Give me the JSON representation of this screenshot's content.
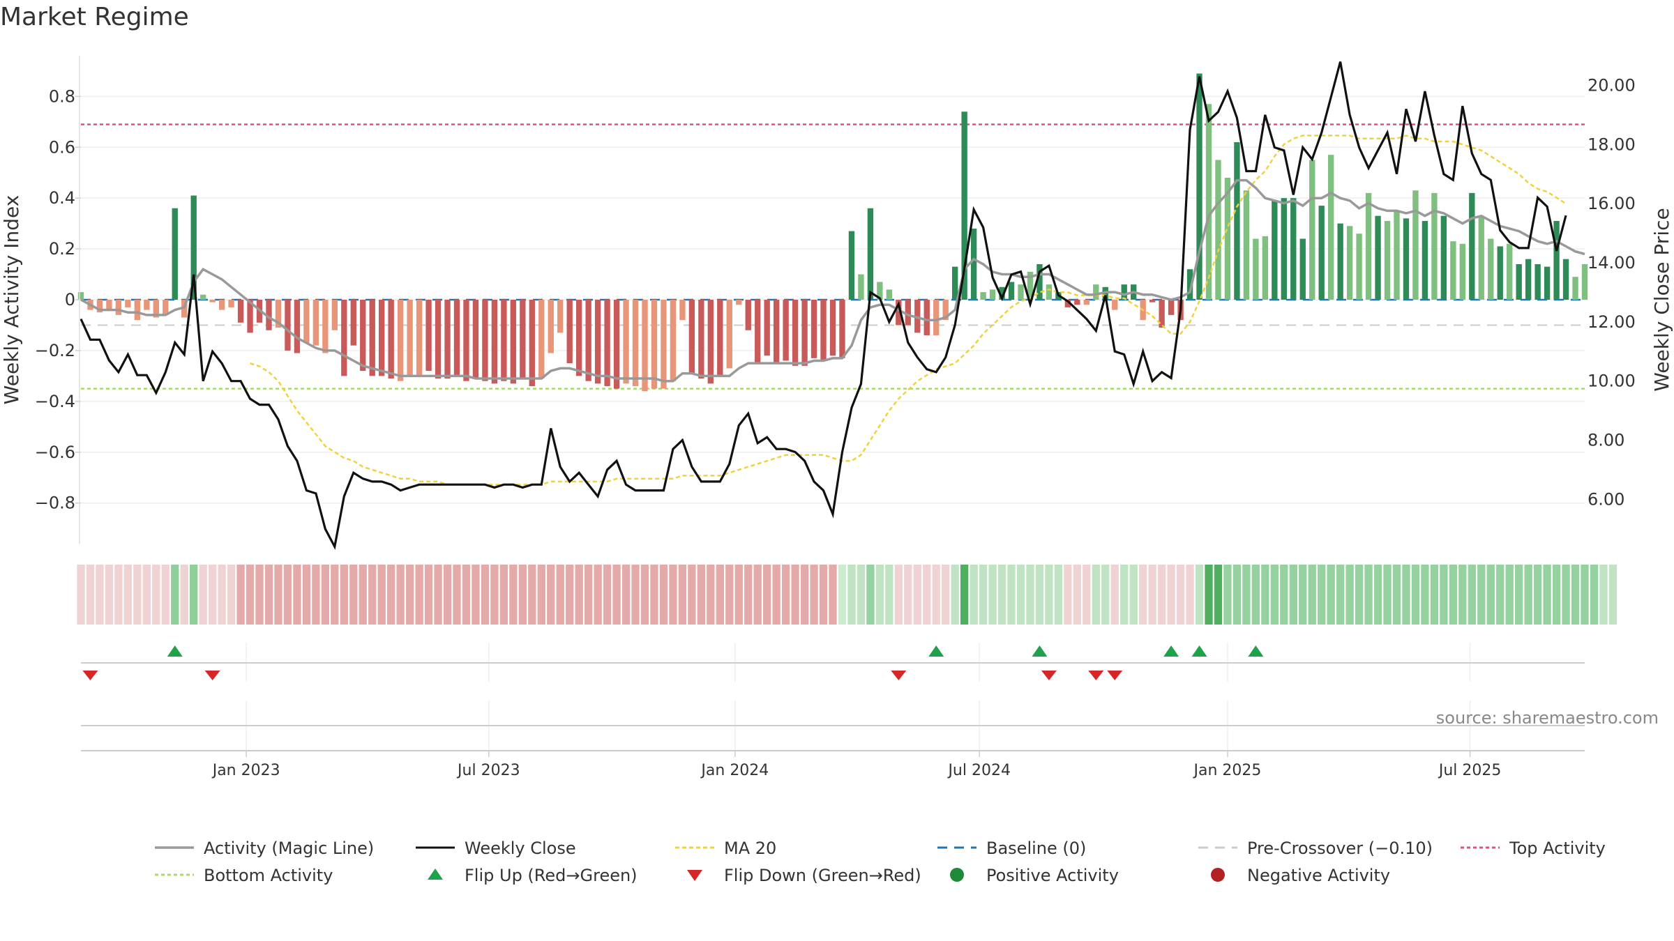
{
  "title": "Market Regime",
  "source": "source: sharemaestro.com",
  "colors": {
    "strong_green": "#2e8b57",
    "light_green": "#7fbf7f",
    "strong_red": "#c85a5a",
    "light_red": "#e8967a",
    "magic_line": "#999999",
    "close": "#111111",
    "ma20": "#f0d23c",
    "baseline": "#1f77b4",
    "pre_crossover": "#cccccc",
    "top": "#d9537a",
    "bottom": "#a8d96a",
    "flip_up": "#1fa34a",
    "flip_down": "#d62728",
    "positive": "#1f8a3a",
    "negative": "#b22222"
  },
  "legend": [
    {
      "key": "magic",
      "label": "Activity (Magic Line)"
    },
    {
      "key": "close",
      "label": "Weekly Close"
    },
    {
      "key": "ma20",
      "label": "MA 20"
    },
    {
      "key": "baseline",
      "label": "Baseline (0)"
    },
    {
      "key": "pre",
      "label": "Pre-Crossover (−0.10)"
    },
    {
      "key": "top",
      "label": "Top Activity"
    },
    {
      "key": "bottom",
      "label": "Bottom Activity"
    },
    {
      "key": "flipup",
      "label": "Flip Up (Red→Green)"
    },
    {
      "key": "flipdown",
      "label": "Flip Down (Green→Red)"
    },
    {
      "key": "positive",
      "label": "Positive Activity"
    },
    {
      "key": "negative",
      "label": "Negative Activity"
    }
  ],
  "chart_data": {
    "type": "bar",
    "ylabel": "Weekly Activity Index",
    "y2label": "Weekly Close Price",
    "ylim": [
      -0.96,
      0.96
    ],
    "y2lim": [
      4.5,
      21.0
    ],
    "yticks": [
      -0.8,
      -0.6,
      -0.4,
      -0.2,
      0,
      0.2,
      0.4,
      0.6,
      0.8
    ],
    "ytick_labels": [
      "−0.8",
      "−0.6",
      "−0.4",
      "−0.2",
      "0",
      "0.2",
      "0.4",
      "0.6",
      "0.8"
    ],
    "y2ticks": [
      6,
      8,
      10,
      12,
      14,
      16,
      18,
      20
    ],
    "y2tick_labels": [
      "6.00",
      "8.00",
      "10.00",
      "12.00",
      "14.00",
      "16.00",
      "18.00",
      "20.00"
    ],
    "x_start_week": 0,
    "xticks": [
      {
        "label": "Jan 2023",
        "week": 17.6
      },
      {
        "label": "Jul 2023",
        "week": 43.4
      },
      {
        "label": "Jan 2024",
        "week": 69.6
      },
      {
        "label": "Jul 2024",
        "week": 95.6
      },
      {
        "label": "Jan 2025",
        "week": 122.0
      },
      {
        "label": "Jul 2025",
        "week": 147.8
      }
    ],
    "reference_lines": {
      "top": 0.69,
      "bottom": -0.35,
      "baseline": 0,
      "pre_crossover": -0.1
    },
    "activity": [
      0.03,
      -0.04,
      -0.05,
      -0.04,
      -0.06,
      -0.03,
      -0.08,
      -0.04,
      -0.07,
      -0.06,
      0.36,
      -0.07,
      0.41,
      0.02,
      -0.01,
      -0.04,
      -0.03,
      -0.09,
      -0.13,
      -0.09,
      -0.12,
      -0.11,
      -0.2,
      -0.21,
      -0.17,
      -0.18,
      -0.21,
      -0.12,
      -0.3,
      -0.18,
      -0.28,
      -0.3,
      -0.3,
      -0.31,
      -0.32,
      -0.3,
      -0.3,
      -0.28,
      -0.31,
      -0.31,
      -0.3,
      -0.32,
      -0.31,
      -0.32,
      -0.33,
      -0.32,
      -0.33,
      -0.31,
      -0.34,
      -0.31,
      -0.21,
      -0.13,
      -0.25,
      -0.3,
      -0.32,
      -0.33,
      -0.34,
      -0.35,
      -0.33,
      -0.34,
      -0.36,
      -0.35,
      -0.35,
      -0.32,
      -0.08,
      -0.29,
      -0.31,
      -0.33,
      -0.3,
      -0.27,
      -0.02,
      -0.12,
      -0.25,
      -0.22,
      -0.25,
      -0.24,
      -0.26,
      -0.26,
      -0.23,
      -0.24,
      -0.22,
      -0.23,
      0.27,
      0.1,
      0.36,
      0.07,
      0.04,
      -0.1,
      -0.1,
      -0.13,
      -0.14,
      -0.14,
      -0.08,
      0.13,
      0.74,
      0.28,
      0.03,
      0.04,
      0.05,
      0.07,
      0.06,
      0.11,
      0.14,
      0.06,
      0.03,
      -0.03,
      -0.02,
      -0.02,
      0.06,
      0.05,
      -0.04,
      0.06,
      0.06,
      -0.08,
      -0.01,
      -0.11,
      -0.06,
      -0.08,
      0.12,
      0.89,
      0.77,
      0.55,
      0.48,
      0.62,
      0.43,
      0.24,
      0.25,
      0.39,
      0.4,
      0.4,
      0.24,
      0.55,
      0.37,
      0.57,
      0.3,
      0.29,
      0.26,
      0.42,
      0.33,
      0.31,
      0.35,
      0.32,
      0.43,
      0.31,
      0.42,
      0.33,
      0.23,
      0.22,
      0.42,
      0.33,
      0.24,
      0.21,
      0.22,
      0.14,
      0.16,
      0.14,
      0.13,
      0.31,
      0.16,
      0.09,
      0.14
    ],
    "activity_shade": [
      "L",
      "L",
      "L",
      "L",
      "L",
      "L",
      "L",
      "L",
      "L",
      "L",
      "S",
      "L",
      "S",
      "L",
      "L",
      "L",
      "L",
      "S",
      "S",
      "S",
      "S",
      "L",
      "S",
      "S",
      "L",
      "L",
      "L",
      "L",
      "S",
      "S",
      "S",
      "S",
      "S",
      "S",
      "L",
      "L",
      "L",
      "S",
      "S",
      "S",
      "S",
      "S",
      "S",
      "S",
      "S",
      "S",
      "S",
      "S",
      "S",
      "L",
      "L",
      "L",
      "S",
      "S",
      "S",
      "S",
      "S",
      "S",
      "L",
      "L",
      "L",
      "L",
      "L",
      "L",
      "L",
      "S",
      "S",
      "S",
      "S",
      "L",
      "L",
      "S",
      "S",
      "S",
      "S",
      "S",
      "S",
      "S",
      "S",
      "S",
      "S",
      "S",
      "S",
      "L",
      "S",
      "L",
      "L",
      "S",
      "S",
      "S",
      "S",
      "L",
      "L",
      "S",
      "S",
      "S",
      "L",
      "L",
      "S",
      "S",
      "L",
      "L",
      "S",
      "L",
      "S",
      "S",
      "S",
      "L",
      "L",
      "S",
      "L",
      "S",
      "S",
      "L",
      "S",
      "S",
      "S",
      "S",
      "S",
      "S",
      "L",
      "L",
      "L",
      "S",
      "L",
      "L",
      "L",
      "S",
      "S",
      "S",
      "S",
      "L",
      "S",
      "L",
      "S",
      "L",
      "L",
      "L",
      "S",
      "L",
      "L",
      "S",
      "L",
      "S",
      "L",
      "S",
      "L",
      "L",
      "S",
      "L",
      "L",
      "S",
      "L",
      "S",
      "S",
      "S",
      "S",
      "S",
      "S",
      "L",
      "L",
      "S",
      "S"
    ],
    "magic_line": [
      0.0,
      -0.02,
      -0.04,
      -0.04,
      -0.04,
      -0.05,
      -0.05,
      -0.06,
      -0.06,
      -0.06,
      -0.04,
      -0.03,
      0.07,
      0.12,
      0.1,
      0.08,
      0.05,
      0.02,
      -0.01,
      -0.04,
      -0.07,
      -0.09,
      -0.12,
      -0.15,
      -0.17,
      -0.19,
      -0.2,
      -0.2,
      -0.22,
      -0.24,
      -0.26,
      -0.27,
      -0.28,
      -0.29,
      -0.3,
      -0.3,
      -0.3,
      -0.3,
      -0.3,
      -0.3,
      -0.3,
      -0.3,
      -0.31,
      -0.31,
      -0.31,
      -0.31,
      -0.31,
      -0.31,
      -0.31,
      -0.31,
      -0.28,
      -0.27,
      -0.27,
      -0.28,
      -0.29,
      -0.3,
      -0.3,
      -0.31,
      -0.31,
      -0.31,
      -0.31,
      -0.31,
      -0.32,
      -0.32,
      -0.29,
      -0.29,
      -0.3,
      -0.3,
      -0.3,
      -0.3,
      -0.27,
      -0.25,
      -0.25,
      -0.25,
      -0.25,
      -0.25,
      -0.25,
      -0.25,
      -0.24,
      -0.24,
      -0.23,
      -0.23,
      -0.18,
      -0.08,
      -0.03,
      -0.02,
      -0.02,
      -0.04,
      -0.06,
      -0.07,
      -0.08,
      -0.08,
      -0.07,
      -0.04,
      0.12,
      0.16,
      0.14,
      0.11,
      0.1,
      0.1,
      0.09,
      0.09,
      0.1,
      0.1,
      0.08,
      0.06,
      0.04,
      0.02,
      0.02,
      0.03,
      0.03,
      0.02,
      0.03,
      0.02,
      0.02,
      0.01,
      0.0,
      0.01,
      0.03,
      0.19,
      0.33,
      0.38,
      0.42,
      0.47,
      0.47,
      0.44,
      0.4,
      0.39,
      0.38,
      0.39,
      0.37,
      0.4,
      0.4,
      0.42,
      0.4,
      0.39,
      0.36,
      0.38,
      0.36,
      0.35,
      0.35,
      0.34,
      0.35,
      0.33,
      0.35,
      0.34,
      0.32,
      0.3,
      0.32,
      0.33,
      0.31,
      0.29,
      0.28,
      0.27,
      0.25,
      0.23,
      0.22,
      0.23,
      0.21,
      0.19,
      0.18
    ],
    "weekly_close": [
      12.1,
      11.4,
      11.4,
      10.7,
      10.3,
      10.9,
      10.2,
      10.2,
      9.6,
      10.3,
      11.3,
      10.9,
      13.6,
      10.0,
      11.0,
      10.6,
      10.0,
      10.0,
      9.4,
      9.2,
      9.2,
      8.7,
      7.8,
      7.3,
      6.3,
      6.2,
      5.0,
      4.4,
      6.1,
      6.9,
      6.7,
      6.6,
      6.6,
      6.5,
      6.3,
      6.4,
      6.5,
      6.5,
      6.5,
      6.5,
      6.5,
      6.5,
      6.5,
      6.5,
      6.4,
      6.5,
      6.5,
      6.4,
      6.5,
      6.5,
      8.4,
      7.1,
      6.6,
      6.9,
      6.5,
      6.1,
      7.0,
      7.3,
      6.5,
      6.3,
      6.3,
      6.3,
      6.3,
      7.7,
      8.0,
      7.1,
      6.6,
      6.6,
      6.6,
      7.2,
      8.5,
      8.9,
      7.9,
      8.1,
      7.7,
      7.7,
      7.6,
      7.3,
      6.6,
      6.3,
      5.5,
      7.6,
      9.1,
      9.9,
      13.0,
      12.8,
      12.0,
      12.6,
      11.3,
      10.8,
      10.4,
      10.3,
      10.8,
      11.9,
      13.8,
      15.8,
      15.2,
      13.5,
      12.8,
      13.6,
      13.7,
      12.6,
      13.7,
      13.9,
      12.9,
      12.7,
      12.4,
      12.1,
      11.7,
      12.9,
      11.0,
      10.9,
      9.9,
      11.0,
      10.0,
      10.3,
      10.1,
      12.4,
      18.5,
      20.3,
      18.8,
      19.1,
      19.8,
      18.9,
      17.1,
      17.1,
      19.0,
      17.9,
      17.8,
      16.3,
      17.9,
      17.5,
      18.4,
      19.6,
      20.8,
      19.0,
      17.9,
      17.2,
      17.8,
      18.4,
      17.0,
      19.2,
      18.1,
      19.8,
      18.3,
      17.0,
      16.8,
      19.3,
      17.7,
      17.0,
      16.8,
      15.1,
      14.7,
      14.5,
      14.5,
      16.2,
      15.9,
      14.4,
      15.6
    ],
    "ma20": [
      0,
      0,
      0,
      0,
      0,
      0,
      0,
      0,
      0,
      0,
      0,
      0,
      0,
      0,
      0,
      0,
      0,
      0,
      10.6,
      10.5,
      10.3,
      10.0,
      9.5,
      9.0,
      8.6,
      8.2,
      7.8,
      7.6,
      7.4,
      7.3,
      7.1,
      7.0,
      6.9,
      6.8,
      6.7,
      6.7,
      6.6,
      6.6,
      6.6,
      6.5,
      6.5,
      6.5,
      6.5,
      6.5,
      6.5,
      6.5,
      6.5,
      6.5,
      6.5,
      6.5,
      6.6,
      6.6,
      6.6,
      6.6,
      6.6,
      6.6,
      6.6,
      6.7,
      6.7,
      6.7,
      6.7,
      6.7,
      6.7,
      6.7,
      6.8,
      6.8,
      6.8,
      6.8,
      6.8,
      6.9,
      7.0,
      7.1,
      7.2,
      7.3,
      7.4,
      7.5,
      7.5,
      7.5,
      7.5,
      7.5,
      7.4,
      7.3,
      7.3,
      7.5,
      8.0,
      8.5,
      9.0,
      9.4,
      9.7,
      10.0,
      10.2,
      10.4,
      10.5,
      10.6,
      10.9,
      11.2,
      11.6,
      11.9,
      12.2,
      12.5,
      12.7,
      12.8,
      13.0,
      13.1,
      13.0,
      13.0,
      12.9,
      12.9,
      12.9,
      12.9,
      12.8,
      12.8,
      12.6,
      12.4,
      12.2,
      11.9,
      11.6,
      11.6,
      12.0,
      12.7,
      13.5,
      14.4,
      15.2,
      15.9,
      16.4,
      16.8,
      17.1,
      17.6,
      18.0,
      18.2,
      18.3,
      18.3,
      18.3,
      18.3,
      18.3,
      18.3,
      18.2,
      18.2,
      18.2,
      18.2,
      18.2,
      18.3,
      18.2,
      18.2,
      18.1,
      18.1,
      18.1,
      18.0,
      17.9,
      17.8,
      17.6,
      17.4,
      17.2,
      17.0,
      16.7,
      16.5,
      16.4,
      16.2,
      16.0
    ],
    "regime_strip": [
      "l",
      "l",
      "l",
      "l",
      "l",
      "l",
      "l",
      "l",
      "l",
      "l",
      "g",
      "l",
      "g",
      "l",
      "l",
      "l",
      "l",
      "m",
      "m",
      "m",
      "m",
      "m",
      "m",
      "m",
      "m",
      "m",
      "m",
      "m",
      "m",
      "m",
      "m",
      "m",
      "m",
      "m",
      "m",
      "m",
      "m",
      "m",
      "m",
      "m",
      "m",
      "m",
      "m",
      "m",
      "m",
      "m",
      "m",
      "m",
      "m",
      "m",
      "m",
      "m",
      "m",
      "m",
      "m",
      "m",
      "m",
      "m",
      "m",
      "m",
      "m",
      "m",
      "m",
      "m",
      "m",
      "m",
      "m",
      "m",
      "m",
      "m",
      "m",
      "m",
      "m",
      "m",
      "m",
      "m",
      "m",
      "m",
      "m",
      "m",
      "m",
      "a",
      "b",
      "b",
      "c",
      "b",
      "b",
      "l",
      "l",
      "l",
      "l",
      "l",
      "l",
      "b",
      "G",
      "b",
      "b",
      "b",
      "b",
      "b",
      "b",
      "b",
      "b",
      "b",
      "b",
      "l",
      "l",
      "l",
      "b",
      "b",
      "l",
      "b",
      "b",
      "l",
      "l",
      "l",
      "l",
      "l",
      "l",
      "b",
      "G",
      "G",
      "c",
      "c",
      "c",
      "c",
      "c",
      "c",
      "c",
      "c",
      "c",
      "c",
      "c",
      "c",
      "c",
      "c",
      "c",
      "c",
      "c",
      "c",
      "c",
      "c",
      "c",
      "c",
      "c",
      "c",
      "c",
      "c",
      "c",
      "c",
      "c",
      "c",
      "c",
      "c",
      "c",
      "c",
      "c",
      "c",
      "c",
      "c",
      "c",
      "c",
      "b",
      "b"
    ],
    "flip_up_weeks": [
      10,
      91,
      102,
      116,
      119,
      125
    ],
    "flip_down_weeks": [
      1,
      14,
      87,
      103,
      108,
      110
    ]
  }
}
